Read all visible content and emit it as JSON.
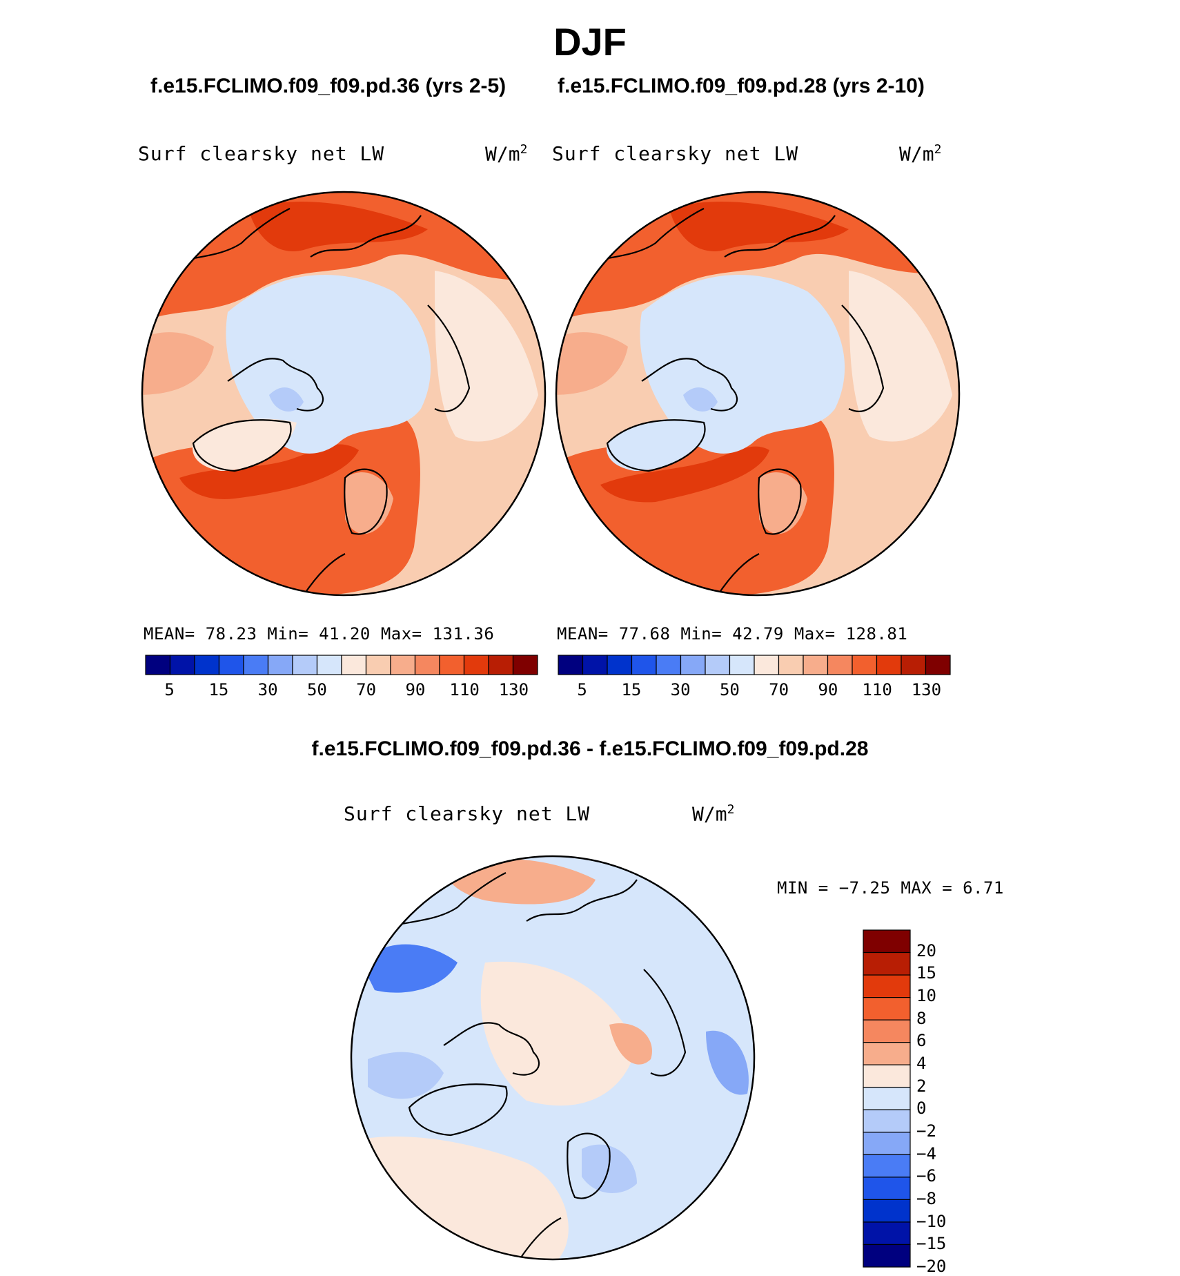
{
  "figure": {
    "title": "DJF",
    "left_case": "f.e15.FCLIMO.f09_f09.pd.36 (yrs 2-5)",
    "right_case": "f.e15.FCLIMO.f09_f09.pd.28 (yrs 2-10)",
    "diff_title": "f.e15.FCLIMO.f09_f09.pd.36 - f.e15.FCLIMO.f09_f09.pd.28"
  },
  "panels": {
    "left": {
      "variable": "Surf clearsky net LW",
      "units_base": "W/m",
      "units_exp": "2",
      "stats_line": "MEAN=  78.23  Min=  41.20  Max= 131.36"
    },
    "right": {
      "variable": "Surf clearsky net LW",
      "units_base": "W/m",
      "units_exp": "2",
      "stats_line": "MEAN=  77.68  Min=  42.79  Max= 128.81"
    },
    "diff": {
      "variable": "Surf clearsky net LW",
      "units_base": "W/m",
      "units_exp": "2",
      "stats_line": "MIN =  −7.25 MAX =   6.71"
    }
  },
  "colorbars": {
    "absolute": {
      "tick_labels": [
        "5",
        "15",
        "30",
        "50",
        "70",
        "90",
        "110",
        "130"
      ],
      "colors": [
        "#00007f",
        "#0013a8",
        "#0033cc",
        "#1f55ea",
        "#4a7cf5",
        "#86a8f7",
        "#b4cbf9",
        "#d6e6fb",
        "#fbe8dc",
        "#f9cdb1",
        "#f7ad8c",
        "#f5875f",
        "#f2602e",
        "#e23a0c",
        "#b81e04",
        "#7f0000"
      ]
    },
    "difference": {
      "tick_labels": [
        "20",
        "15",
        "10",
        "8",
        "6",
        "4",
        "2",
        "0",
        "−2",
        "−4",
        "−6",
        "−8",
        "−10",
        "−15",
        "−20"
      ],
      "colors": [
        "#7f0000",
        "#b81e04",
        "#e23a0c",
        "#f2602e",
        "#f5875f",
        "#f7ad8c",
        "#fbe8dc",
        "#d6e6fb",
        "#b4cbf9",
        "#86a8f7",
        "#4a7cf5",
        "#1f55ea",
        "#0033cc",
        "#0013a8",
        "#00007f"
      ]
    }
  },
  "chart_data": [
    {
      "type": "heatmap",
      "projection": "polar stereographic (North Pole)",
      "title": "Surf clearsky net LW",
      "case": "f.e15.FCLIMO.f09_f09.pd.36 (yrs 2-5)",
      "units": "W/m2",
      "mean": 78.23,
      "min": 41.2,
      "max": 131.36,
      "contour_levels": [
        5,
        10,
        15,
        20,
        30,
        40,
        50,
        60,
        70,
        80,
        90,
        100,
        110,
        120,
        130
      ]
    },
    {
      "type": "heatmap",
      "projection": "polar stereographic (North Pole)",
      "title": "Surf clearsky net LW",
      "case": "f.e15.FCLIMO.f09_f09.pd.28 (yrs 2-10)",
      "units": "W/m2",
      "mean": 77.68,
      "min": 42.79,
      "max": 128.81,
      "contour_levels": [
        5,
        10,
        15,
        20,
        30,
        40,
        50,
        60,
        70,
        80,
        90,
        100,
        110,
        120,
        130
      ]
    },
    {
      "type": "heatmap",
      "projection": "polar stereographic (North Pole)",
      "title": "Surf clearsky net LW",
      "case": "f.e15.FCLIMO.f09_f09.pd.36 - f.e15.FCLIMO.f09_f09.pd.28",
      "units": "W/m2",
      "min": -7.25,
      "max": 6.71,
      "contour_levels": [
        -20,
        -15,
        -10,
        -8,
        -6,
        -4,
        -2,
        0,
        2,
        4,
        6,
        8,
        10,
        15,
        20
      ]
    }
  ]
}
